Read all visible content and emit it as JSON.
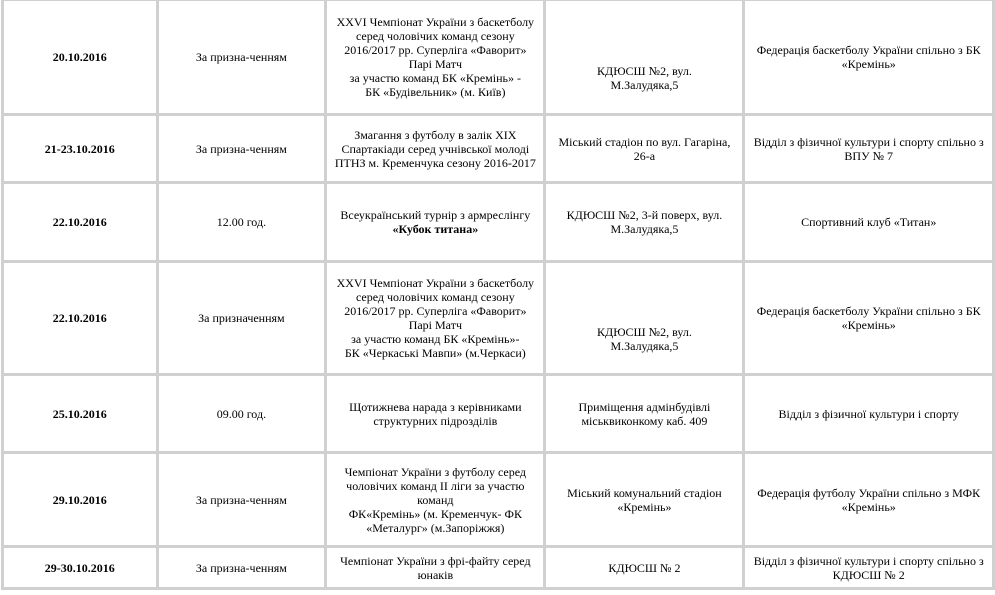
{
  "rows": [
    {
      "date": "20.10.2016",
      "time": "За призна-ченням",
      "event": "XXVI Чемпіонат України з баскетболу серед чоловічих команд сезону 2016/2017 рр. Суперліга «Фаворит»\nПарі Матч\nза участю команд БК «Кремінь» -\nБК «Будівельник» (м. Київ)",
      "event_bold": "",
      "place": "\n\n\nКДЮСШ №2, вул.\nМ.Залудяка,5",
      "organizer": "Федерація баскетболу України спільно з БК\n«Кремінь»"
    },
    {
      "date": "21-23.10.2016",
      "time": "За призна-ченням",
      "event": "Змагання з футболу в залік XIX Спартакіади серед учнівської молоді ПТНЗ                    м. Кременчука сезону 2016-2017",
      "event_bold": "",
      "place": "Міський стадіон по вул. Гагаріна, 26-а",
      "organizer": "Відділ з фізичної культури і спорту спільно з ВПУ № 7"
    },
    {
      "date": "22.10.2016",
      "time": "12.00 год.",
      "event": "Всеукраїнський турнір з армреслінгу",
      "event_bold": "«Кубок титана»",
      "place": "КДЮСШ №2, 3-й поверх, вул. М.Залудяка,5",
      "organizer": "Спортивний клуб «Титан»"
    },
    {
      "date": "22.10.2016",
      "time": "За призначенням",
      "event": "XXVI Чемпіонат України з баскетболу серед чоловічих команд сезону 2016/2017 рр. Суперліга «Фаворит»\nПарі Матч\nза участю команд БК «Кремінь»-\nБК «Черкаські Мавпи» (м.Черкаси)",
      "event_bold": "",
      "place": "\n\n\nКДЮСШ №2, вул.\nМ.Залудяка,5",
      "organizer": "Федерація баскетболу України спільно з БК\n«Кремінь»"
    },
    {
      "date": "25.10.2016",
      "time": "09.00 год.",
      "event": "Щотижнева нарада з керівниками структурних підрозділів",
      "event_bold": "",
      "place": "Приміщення адмінбудівлі міськвиконкому каб. 409",
      "organizer": "Відділ з фізичної культури і спорту"
    },
    {
      "date": "29.10.2016",
      "time": "За призна-ченням",
      "event": "Чемпіонат України з футболу серед чоловічих команд ІІ ліги  за участю команд\nФК«Кремінь»                    (м. Кременчук- ФК «Металург» (м.Запоріжжя)",
      "event_bold": "",
      "place": "Міський комунальний стадіон «Кремінь»",
      "organizer": "Федерація футболу України спільно з МФК «Кремінь»"
    },
    {
      "date": "29-30.10.2016",
      "time": "За призна-ченням",
      "event": "Чемпіонат України з фрі-файту серед юнаків",
      "event_bold": "",
      "place": "КДЮСШ № 2",
      "organizer": "Відділ з фізичної культури і спорту спільно з КДЮСШ                   № 2"
    }
  ]
}
